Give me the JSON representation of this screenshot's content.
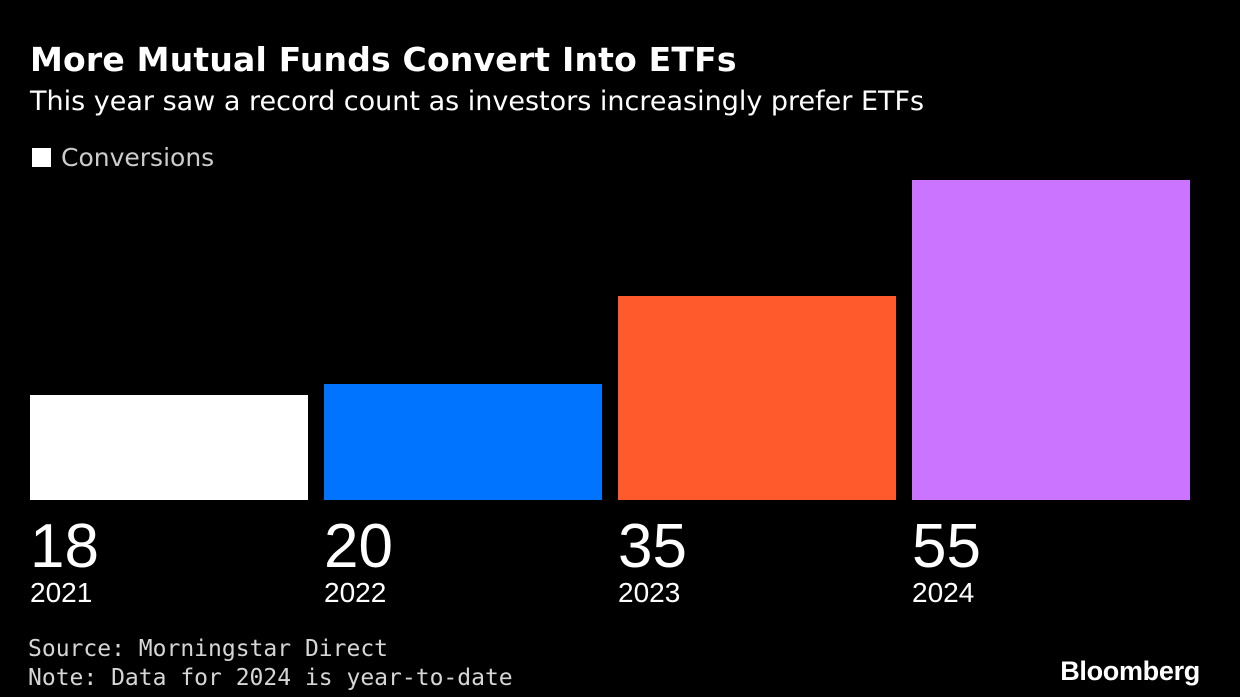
{
  "chart_data": {
    "type": "bar",
    "title": "More Mutual Funds Convert Into ETFs",
    "subtitle": "This year saw a record count as investors increasingly prefer ETFs",
    "legend": [
      {
        "label": "Conversions",
        "color": "#ffffff"
      }
    ],
    "legend_position": "top-left",
    "categories": [
      "2021",
      "2022",
      "2023",
      "2024"
    ],
    "values": [
      18,
      20,
      35,
      55
    ],
    "value_labels": [
      "18",
      "20",
      "35",
      "55"
    ],
    "bar_colors": [
      "#ffffff",
      "#0074ff",
      "#ff5a2b",
      "#ca74ff"
    ],
    "xlabel": "",
    "ylabel": "",
    "ylim": [
      0,
      55
    ],
    "grid": false
  },
  "footer": {
    "source": "Source: Morningstar Direct",
    "note": "Note: Data for 2024 is year-to-date"
  },
  "brand": "Bloomberg"
}
